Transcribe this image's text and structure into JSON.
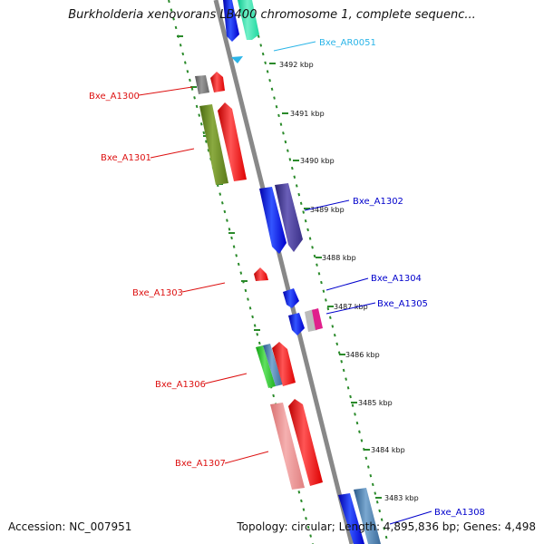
{
  "title": "Burkholderia xenovorans LB400 chromosome 1, complete sequenc...",
  "ticks": [
    "3492 kbp",
    "3491 kbp",
    "3490 kbp",
    "3489 kbp",
    "3488 kbp",
    "3487 kbp",
    "3486 kbp",
    "3485 kbp",
    "3484 kbp",
    "3483 kbp"
  ],
  "genes": [
    {
      "label": "Bxe_AR0051",
      "color": "#2bb5e8"
    },
    {
      "label": "Bxe_A1300",
      "color": "#dd1111"
    },
    {
      "label": "Bxe_A1301",
      "color": "#dd1111"
    },
    {
      "label": "Bxe_A1302",
      "color": "#0000cc"
    },
    {
      "label": "Bxe_A1303",
      "color": "#dd1111"
    },
    {
      "label": "Bxe_A1304",
      "color": "#0000cc"
    },
    {
      "label": "Bxe_A1305",
      "color": "#0000cc"
    },
    {
      "label": "Bxe_A1306",
      "color": "#dd1111"
    },
    {
      "label": "Bxe_A1307",
      "color": "#dd1111"
    },
    {
      "label": "Bxe_A1308",
      "color": "#0000cc"
    }
  ],
  "footer": {
    "accession": "Accession: NC_007951",
    "summary": "Topology: circular; Length: 4,895,836 bp; Genes: 4,498"
  }
}
